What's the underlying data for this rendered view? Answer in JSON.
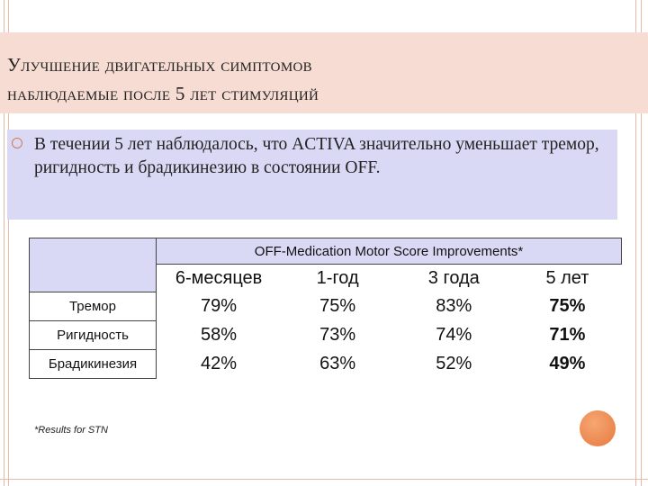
{
  "title": {
    "line1": "Улучшение двигательных симптомов",
    "line2": "наблюдаемые после 5 лет стимуляций"
  },
  "bullet": {
    "text": "В течении 5 лет наблюдалось, что ACTIVA значительно уменьшает тремор, ригидность и брадикинезию в состоянии OFF."
  },
  "table": {
    "header": "OFF-Medication Motor Score Improvements*",
    "columns": [
      "6-месяцев",
      "1-год",
      "3 года",
      "5 лет"
    ],
    "rows": [
      {
        "label": "Тремор",
        "values": [
          "79%",
          "75%",
          "83%",
          "75%"
        ]
      },
      {
        "label": "Ригидность",
        "values": [
          "58%",
          "73%",
          "74%",
          "71%"
        ]
      },
      {
        "label": "Брадикинезия",
        "values": [
          "42%",
          "63%",
          "52%",
          "49%"
        ]
      }
    ]
  },
  "footnote": "*Results for STN",
  "colors": {
    "title_band": "#f6dcd2",
    "accent": "#e6793f",
    "box_fill": "#d9d9f6",
    "frame": "#e8b8a8"
  }
}
